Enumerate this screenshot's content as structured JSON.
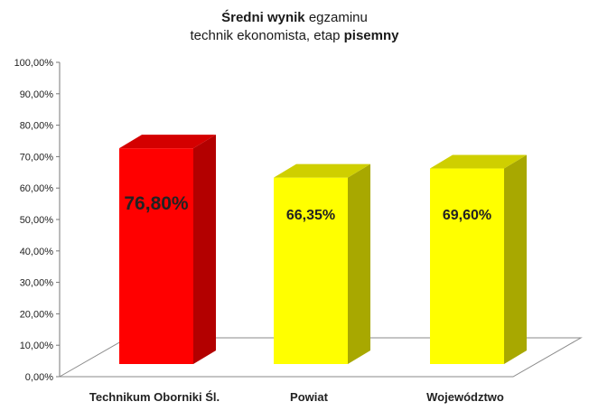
{
  "title": {
    "line1_bold": "Średni wynik",
    "line1_rest": " egzaminu",
    "line2_rest": "technik ekonomista, etap ",
    "line2_bold": "pisemny"
  },
  "chart_data": {
    "type": "bar",
    "categories": [
      "Technikum Oborniki Śl.",
      "Powiat",
      "Województwo"
    ],
    "values": [
      76.8,
      66.35,
      69.6
    ],
    "data_labels": [
      "76,80%",
      "66,35%",
      "69,60%"
    ],
    "yticks": [
      "0,00%",
      "10,00%",
      "20,00%",
      "30,00%",
      "40,00%",
      "50,00%",
      "60,00%",
      "70,00%",
      "80,00%",
      "90,00%",
      "100,00%"
    ],
    "ylim": [
      0,
      100
    ],
    "grid": false,
    "legend": "none",
    "three_d": true,
    "colors": [
      {
        "front": "#ff0000",
        "side": "#b30000",
        "top": "#d40000"
      },
      {
        "front": "#ffff00",
        "side": "#a8a800",
        "top": "#cfcf00"
      },
      {
        "front": "#ffff00",
        "side": "#a8a800",
        "top": "#cfcf00"
      }
    ],
    "label_sizes": [
      "large",
      "normal",
      "normal"
    ]
  }
}
